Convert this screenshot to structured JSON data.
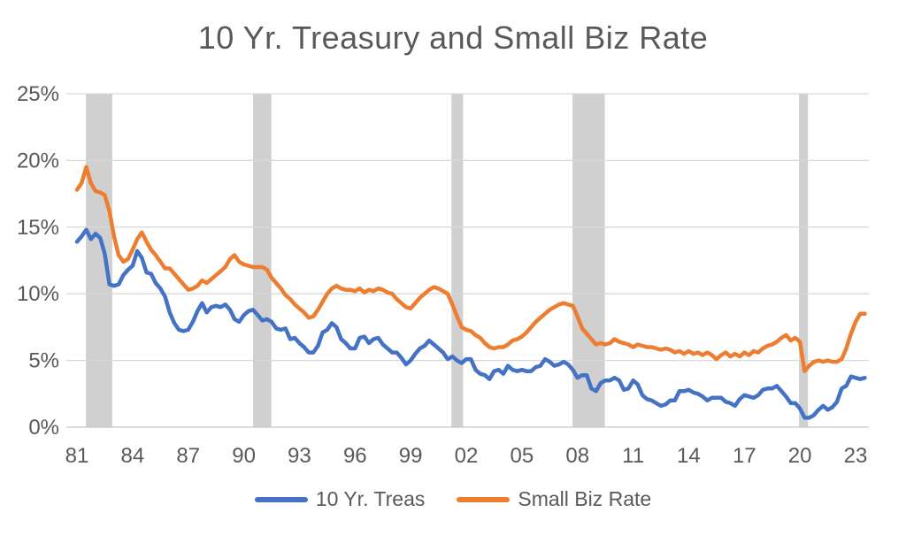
{
  "colors": {
    "background": "#FFFFFF",
    "title_text": "#595959",
    "axis_text": "#595959",
    "gridline": "#D9D9D9",
    "axis_line": "#C6C6C6",
    "recession_band": "#D0D0D0",
    "series_blue": "#4472C4",
    "series_orange": "#ED7D31"
  },
  "chart_data": {
    "type": "line",
    "title": "10 Yr. Treasury and Small Biz Rate",
    "xlabel": "",
    "ylabel": "",
    "x_unit": "year",
    "x_start": 1981.0,
    "x_interval": 0.25,
    "x_end": 2023.5,
    "ylim": [
      0,
      25
    ],
    "grid": "horizontal",
    "legend_position": "bottom",
    "x_tick_labels": [
      "81",
      "84",
      "87",
      "90",
      "93",
      "96",
      "99",
      "02",
      "05",
      "08",
      "11",
      "14",
      "17",
      "20",
      "23"
    ],
    "x_tick_years": [
      1981,
      1984,
      1987,
      1990,
      1993,
      1996,
      1999,
      2002,
      2005,
      2008,
      2011,
      2014,
      2017,
      2020,
      2023
    ],
    "y_ticks": [
      {
        "value": 0,
        "label": "0%"
      },
      {
        "value": 5,
        "label": "5%"
      },
      {
        "value": 10,
        "label": "10%"
      },
      {
        "value": 15,
        "label": "15%"
      },
      {
        "value": 20,
        "label": "20%"
      },
      {
        "value": 25,
        "label": "25%"
      }
    ],
    "recession_bands_years": [
      [
        1981.48,
        1982.9
      ],
      [
        1990.5,
        1991.49
      ],
      [
        2001.2,
        2001.83
      ],
      [
        2007.73,
        2009.47
      ],
      [
        2019.95,
        2020.43
      ]
    ],
    "series": [
      {
        "name": "10 Yr. Treas",
        "color": "#4472C4",
        "values": [
          13.9,
          14.3,
          14.8,
          14.1,
          14.5,
          14.2,
          13.0,
          10.7,
          10.6,
          10.7,
          11.4,
          11.8,
          12.1,
          13.2,
          12.7,
          11.6,
          11.5,
          10.8,
          10.4,
          9.8,
          8.6,
          7.8,
          7.3,
          7.2,
          7.3,
          7.9,
          8.7,
          9.3,
          8.6,
          9.0,
          9.1,
          9.0,
          9.2,
          8.8,
          8.1,
          7.9,
          8.4,
          8.7,
          8.8,
          8.4,
          8.0,
          8.1,
          7.9,
          7.4,
          7.3,
          7.4,
          6.6,
          6.7,
          6.3,
          6.0,
          5.6,
          5.6,
          6.1,
          7.1,
          7.3,
          7.8,
          7.5,
          6.6,
          6.3,
          5.9,
          5.9,
          6.7,
          6.8,
          6.3,
          6.6,
          6.7,
          6.2,
          5.9,
          5.6,
          5.6,
          5.2,
          4.7,
          5.0,
          5.5,
          5.9,
          6.1,
          6.5,
          6.2,
          5.9,
          5.6,
          5.1,
          5.3,
          5.0,
          4.8,
          5.1,
          5.1,
          4.3,
          4.0,
          3.9,
          3.6,
          4.2,
          4.3,
          4.0,
          4.6,
          4.3,
          4.2,
          4.3,
          4.2,
          4.2,
          4.5,
          4.6,
          5.1,
          4.9,
          4.6,
          4.7,
          4.9,
          4.7,
          4.3,
          3.7,
          3.9,
          3.9,
          2.9,
          2.7,
          3.3,
          3.5,
          3.5,
          3.7,
          3.5,
          2.8,
          2.9,
          3.5,
          3.2,
          2.4,
          2.1,
          2.0,
          1.8,
          1.6,
          1.7,
          2.0,
          2.0,
          2.7,
          2.7,
          2.8,
          2.6,
          2.5,
          2.3,
          2.0,
          2.2,
          2.2,
          2.2,
          1.9,
          1.8,
          1.6,
          2.1,
          2.4,
          2.3,
          2.2,
          2.4,
          2.8,
          2.9,
          2.9,
          3.1,
          2.7,
          2.3,
          1.8,
          1.8,
          1.4,
          0.7,
          0.7,
          0.9,
          1.3,
          1.6,
          1.3,
          1.5,
          1.9,
          2.9,
          3.1,
          3.8,
          3.7,
          3.6,
          3.7
        ]
      },
      {
        "name": "Small Biz Rate",
        "color": "#ED7D31",
        "values": [
          17.8,
          18.3,
          19.5,
          18.3,
          17.7,
          17.6,
          17.4,
          16.2,
          14.3,
          12.9,
          12.4,
          12.6,
          13.3,
          14.1,
          14.6,
          13.9,
          13.3,
          12.9,
          12.4,
          11.9,
          11.9,
          11.5,
          11.1,
          10.7,
          10.3,
          10.4,
          10.6,
          11.0,
          10.8,
          11.1,
          11.4,
          11.7,
          12.0,
          12.6,
          12.9,
          12.4,
          12.2,
          12.1,
          12.0,
          12.0,
          12.0,
          11.8,
          11.2,
          10.8,
          10.4,
          9.9,
          9.6,
          9.2,
          8.9,
          8.6,
          8.2,
          8.3,
          8.8,
          9.4,
          10.0,
          10.4,
          10.6,
          10.4,
          10.3,
          10.3,
          10.2,
          10.4,
          10.1,
          10.3,
          10.2,
          10.4,
          10.3,
          10.1,
          10.0,
          9.6,
          9.3,
          9.0,
          8.9,
          9.3,
          9.7,
          10.0,
          10.3,
          10.5,
          10.4,
          10.2,
          10.0,
          9.2,
          8.3,
          7.5,
          7.3,
          7.2,
          6.9,
          6.7,
          6.3,
          6.0,
          5.9,
          6.0,
          6.0,
          6.2,
          6.5,
          6.6,
          6.8,
          7.1,
          7.5,
          7.9,
          8.2,
          8.5,
          8.8,
          9.0,
          9.2,
          9.3,
          9.2,
          9.1,
          8.3,
          7.4,
          7.0,
          6.6,
          6.2,
          6.3,
          6.2,
          6.3,
          6.6,
          6.4,
          6.3,
          6.2,
          6.0,
          6.2,
          6.1,
          6.0,
          6.0,
          5.9,
          5.8,
          5.9,
          5.8,
          5.6,
          5.7,
          5.5,
          5.7,
          5.5,
          5.6,
          5.4,
          5.6,
          5.4,
          5.1,
          5.4,
          5.6,
          5.3,
          5.5,
          5.3,
          5.6,
          5.4,
          5.7,
          5.6,
          5.9,
          6.1,
          6.2,
          6.4,
          6.7,
          6.9,
          6.5,
          6.7,
          6.4,
          4.2,
          4.6,
          4.9,
          5.0,
          4.9,
          5.0,
          4.9,
          4.9,
          5.1,
          5.9,
          7.0,
          7.9,
          8.5,
          8.5
        ]
      }
    ]
  }
}
